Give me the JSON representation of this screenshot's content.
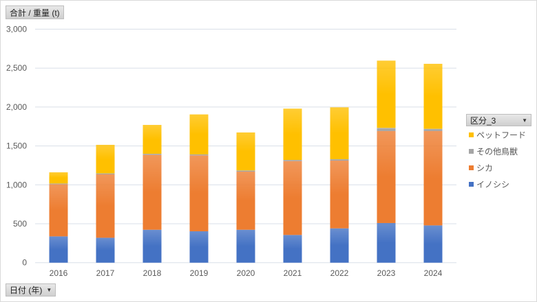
{
  "value_filter": {
    "label": "合計 / 重量 (t)"
  },
  "axis_filter": {
    "label": "日付 (年)"
  },
  "legend": {
    "header": "区分_3"
  },
  "chart_data": {
    "type": "bar",
    "stacked": true,
    "title": "",
    "xlabel": "",
    "ylabel": "",
    "ylim": [
      0,
      3000
    ],
    "yticks": [
      0,
      500,
      1000,
      1500,
      2000,
      2500,
      3000
    ],
    "ytick_labels": [
      "0",
      "500",
      "1,000",
      "1,500",
      "2,000",
      "2,500",
      "3,000"
    ],
    "grid": true,
    "legend_position": "right",
    "categories": [
      "2016",
      "2017",
      "2018",
      "2019",
      "2020",
      "2021",
      "2022",
      "2023",
      "2024"
    ],
    "series": [
      {
        "name": "イノシシ",
        "color": "#4472c4",
        "values": [
          338,
          320,
          423,
          403,
          423,
          356,
          441,
          509,
          479
        ]
      },
      {
        "name": "シカ",
        "color": "#ed7d31",
        "values": [
          670,
          815,
          962,
          976,
          747,
          949,
          870,
          1182,
          1212
        ]
      },
      {
        "name": "その他鳥獣",
        "color": "#a5a5a5",
        "values": [
          9,
          12,
          14,
          12,
          15,
          15,
          18,
          41,
          29
        ]
      },
      {
        "name": "ペットフード",
        "color": "#ffc000",
        "values": [
          144,
          367,
          371,
          514,
          488,
          659,
          667,
          864,
          835
        ]
      }
    ]
  }
}
